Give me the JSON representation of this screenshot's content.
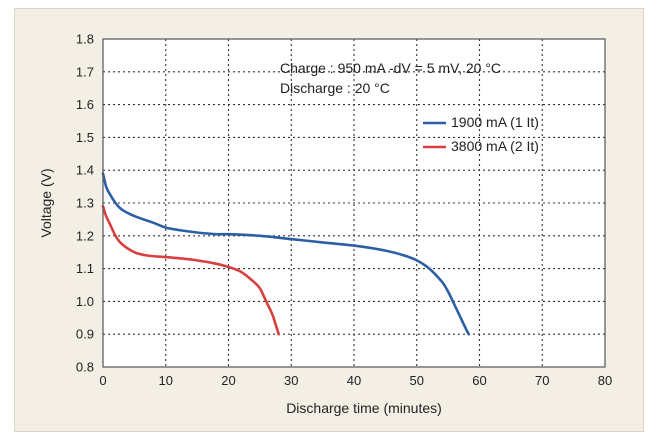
{
  "chart_data": {
    "type": "line",
    "title": "",
    "xlabel": "Discharge time (minutes)",
    "ylabel": "Voltage (V)",
    "xlim": [
      0,
      80
    ],
    "ylim": [
      0.8,
      1.8
    ],
    "xticks": [
      "0",
      "10",
      "20",
      "30",
      "40",
      "50",
      "60",
      "70",
      "80"
    ],
    "yticks": [
      "0.8",
      "0.9",
      "1.0",
      "1.1",
      "1.2",
      "1.3",
      "1.4",
      "1.5",
      "1.6",
      "1.7",
      "1.8"
    ],
    "grid": true,
    "grid_style": "dotted",
    "legend_position": "top-right",
    "annotations": [
      "Charge : 950 mA -dV = 5 mV, 20 °C",
      "Discharge : 20 °C"
    ],
    "series": [
      {
        "name": "1900 mA (1 It)",
        "color": "#2c5fa5",
        "x": [
          0,
          0.5,
          1,
          2,
          3,
          5,
          8,
          10,
          13,
          15,
          18,
          20,
          25,
          30,
          35,
          40,
          45,
          48,
          50,
          52,
          54,
          55,
          56,
          57,
          57.5,
          58,
          58.3
        ],
        "y": [
          1.39,
          1.35,
          1.33,
          1.3,
          1.28,
          1.26,
          1.24,
          1.225,
          1.215,
          1.21,
          1.205,
          1.205,
          1.2,
          1.19,
          1.18,
          1.17,
          1.155,
          1.14,
          1.125,
          1.1,
          1.06,
          1.03,
          0.99,
          0.95,
          0.93,
          0.91,
          0.9
        ]
      },
      {
        "name": "3800 mA (2 It)",
        "color": "#d8403f",
        "x": [
          0,
          0.5,
          1,
          2,
          3,
          5,
          7,
          10,
          13,
          15,
          18,
          20,
          22,
          24,
          25,
          26,
          27,
          27.5,
          28
        ],
        "y": [
          1.29,
          1.26,
          1.24,
          1.2,
          1.175,
          1.15,
          1.14,
          1.135,
          1.13,
          1.125,
          1.115,
          1.105,
          1.09,
          1.06,
          1.04,
          1.0,
          0.96,
          0.93,
          0.9
        ]
      }
    ]
  }
}
